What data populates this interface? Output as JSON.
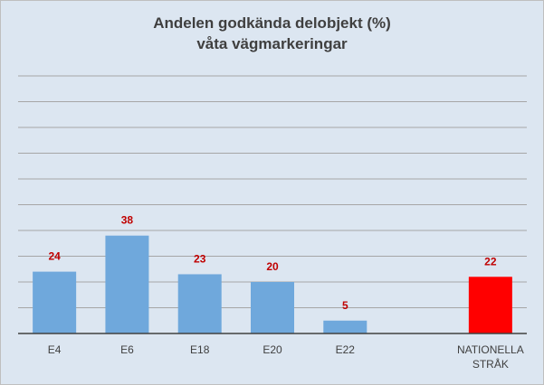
{
  "chart_data": {
    "type": "bar",
    "title": [
      "Andelen godkända delobjekt (%)",
      "våta vägmarkeringar"
    ],
    "xlabel": "",
    "ylabel": "",
    "categories": [
      [
        "E4"
      ],
      [
        "E6"
      ],
      [
        "E18"
      ],
      [
        "E20"
      ],
      [
        "E22"
      ],
      [
        ""
      ],
      [
        "NATIONELLA",
        "STRÅK"
      ]
    ],
    "values": [
      24,
      38,
      23,
      20,
      5,
      null,
      22
    ],
    "value_labels": [
      "24",
      "38",
      "23",
      "20",
      "5",
      "",
      "22"
    ],
    "bar_colors": [
      "#6fa8dc",
      "#6fa8dc",
      "#6fa8dc",
      "#6fa8dc",
      "#6fa8dc",
      "#6fa8dc",
      "#ff0000"
    ],
    "value_label_color": "#c00000",
    "ylim": [
      0,
      100
    ],
    "gridline_step": 10,
    "grid": true,
    "legend": "none"
  },
  "colors": {
    "background": "#dce6f1",
    "gridline": "#a6a6a6",
    "axis": "#404040"
  }
}
